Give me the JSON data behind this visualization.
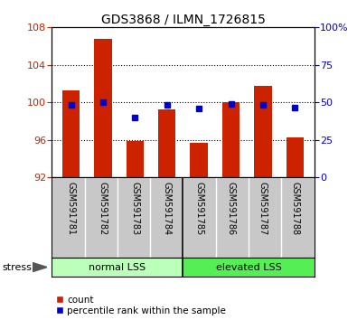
{
  "title": "GDS3868 / ILMN_1726815",
  "samples": [
    "GSM591781",
    "GSM591782",
    "GSM591783",
    "GSM591784",
    "GSM591785",
    "GSM591786",
    "GSM591787",
    "GSM591788"
  ],
  "counts": [
    101.3,
    106.8,
    95.9,
    99.3,
    95.7,
    100.0,
    101.8,
    96.3
  ],
  "percentile_ranks": [
    48.5,
    50.0,
    40.0,
    48.5,
    46.0,
    49.0,
    48.5,
    46.5
  ],
  "ymin": 92,
  "ymax": 108,
  "yticks_left": [
    92,
    96,
    100,
    104,
    108
  ],
  "yticks_right": [
    0,
    25,
    50,
    75,
    100
  ],
  "groups": [
    {
      "label": "normal LSS",
      "start": 0,
      "end": 4,
      "color": "#bbffbb"
    },
    {
      "label": "elevated LSS",
      "start": 4,
      "end": 8,
      "color": "#55ee55"
    }
  ],
  "bar_color": "#cc2200",
  "dot_color": "#0000cc",
  "bar_width": 0.55,
  "stress_label": "stress",
  "legend_count_label": "count",
  "legend_pct_label": "percentile rank within the sample",
  "tick_color_left": "#cc2200",
  "tick_color_right": "#0000cc",
  "label_area_bg": "#c8c8c8",
  "grid_lines": [
    96,
    100,
    104
  ]
}
